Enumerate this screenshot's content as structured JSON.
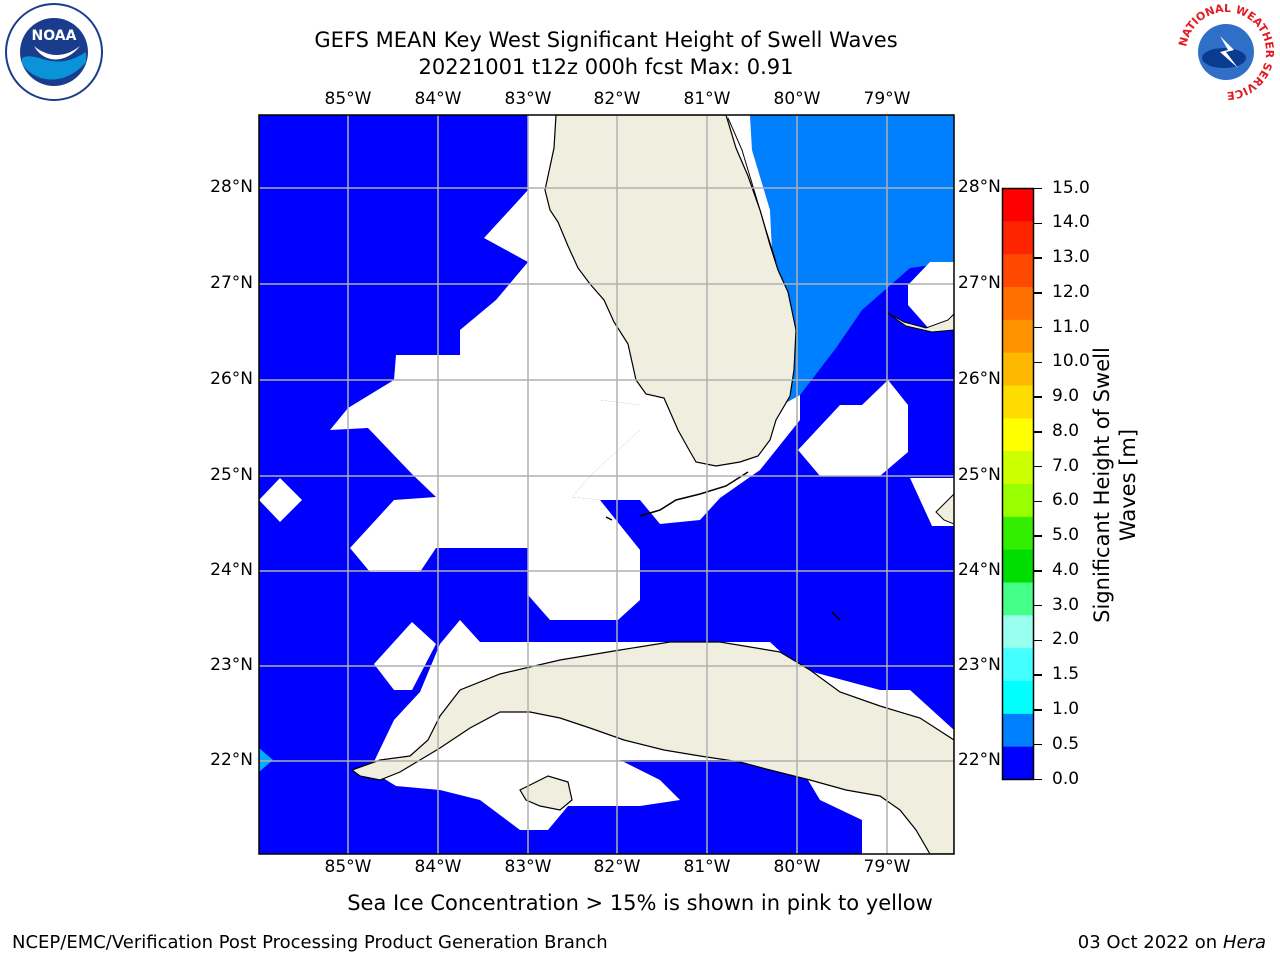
{
  "header": {
    "title_line1": "GEFS MEAN Key West Significant Height of Swell Waves",
    "title_line2": "20221001 t12z 000h fcst   Max: 0.91"
  },
  "logos": {
    "left": {
      "text": "NOAA",
      "ring_text": "NATIONAL OCEANIC AND ATMOSPHERIC ADMINISTRATION · U.S. DEPARTMENT OF COMMERCE"
    },
    "right": {
      "ring_text": "NATIONAL WEATHER SERVICE"
    }
  },
  "map": {
    "lon_ticks": [
      "85°W",
      "84°W",
      "83°W",
      "82°W",
      "81°W",
      "80°W",
      "79°W"
    ],
    "lat_ticks": [
      "28°N",
      "27°N",
      "26°N",
      "25°N",
      "24°N",
      "23°N",
      "22°N"
    ],
    "colors": {
      "land": "#efeedf",
      "swell_0_05": "#0000ff",
      "swell_05_10": "#0080ff",
      "swell_10_15": "#00ccff",
      "grid": "#b0b0b0"
    }
  },
  "colorbar": {
    "label": "Significant Height of Swell Waves [m]",
    "ticks": [
      "15.0",
      "14.0",
      "13.0",
      "12.0",
      "11.0",
      "10.0",
      "9.0",
      "8.0",
      "7.0",
      "6.0",
      "5.0",
      "4.0",
      "3.0",
      "2.0",
      "1.5",
      "1.0",
      "0.5",
      "0.0"
    ],
    "colors": [
      "#ff0000",
      "#ff2400",
      "#ff4800",
      "#ff7000",
      "#ff9400",
      "#ffb800",
      "#ffdc00",
      "#ffff00",
      "#ccff00",
      "#99ff00",
      "#33ee00",
      "#00dd00",
      "#44ff88",
      "#99ffee",
      "#44ffff",
      "#00ffff",
      "#0080ff",
      "#0000ff"
    ]
  },
  "caption": "Sea Ice Concentration > 15% is shown in pink to yellow",
  "footer": {
    "left": "NCEP/EMC/Verification Post Processing Product Generation Branch",
    "right_date": "03 Oct 2022 on ",
    "right_machine": "Hera"
  }
}
